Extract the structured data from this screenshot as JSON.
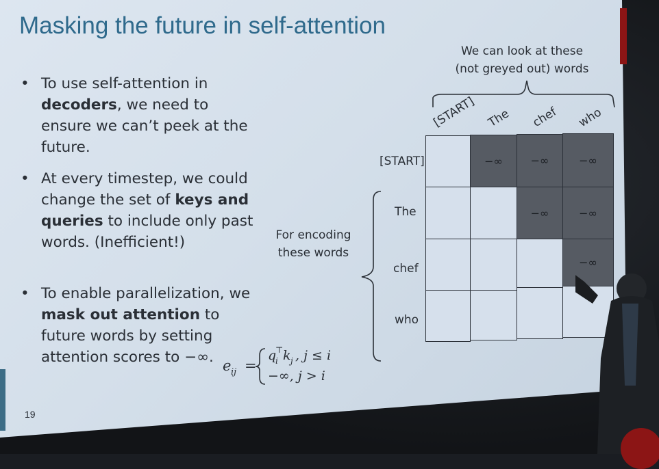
{
  "slide": {
    "title": "Masking the future in self-attention",
    "page_number": "19",
    "bullets": [
      {
        "pre": "To use self-attention in ",
        "bold": "decoders",
        "post": ", we need to ensure we can’t peek at the future."
      },
      {
        "pre": "At every timestep, we could change the set of ",
        "bold": "keys and queries",
        "post": " to include only past words. (Inefficient!)"
      },
      {
        "pre": "To enable parallelization, we ",
        "bold": "mask out attention",
        "post": " to future words by setting attention scores to −∞."
      }
    ],
    "formula": {
      "lhs": "e",
      "lhs_sub": "ij",
      "case1": "q",
      "case1_sub": "i",
      "case1_sup": "⊤",
      "case1_rest": "k",
      "case1_rest_sub": "j",
      "case1_cond": ", j ≤ i",
      "case2": "−∞, j > i"
    },
    "top_caption_line1": "We can look at these",
    "top_caption_line2": "(not greyed out) words",
    "side_caption_line1": "For encoding",
    "side_caption_line2": "these words",
    "columns": [
      "[START]",
      "The",
      "chef",
      "who"
    ],
    "rows": [
      "[START]",
      "The",
      "chef",
      "who"
    ],
    "mask_symbol": "−∞"
  }
}
